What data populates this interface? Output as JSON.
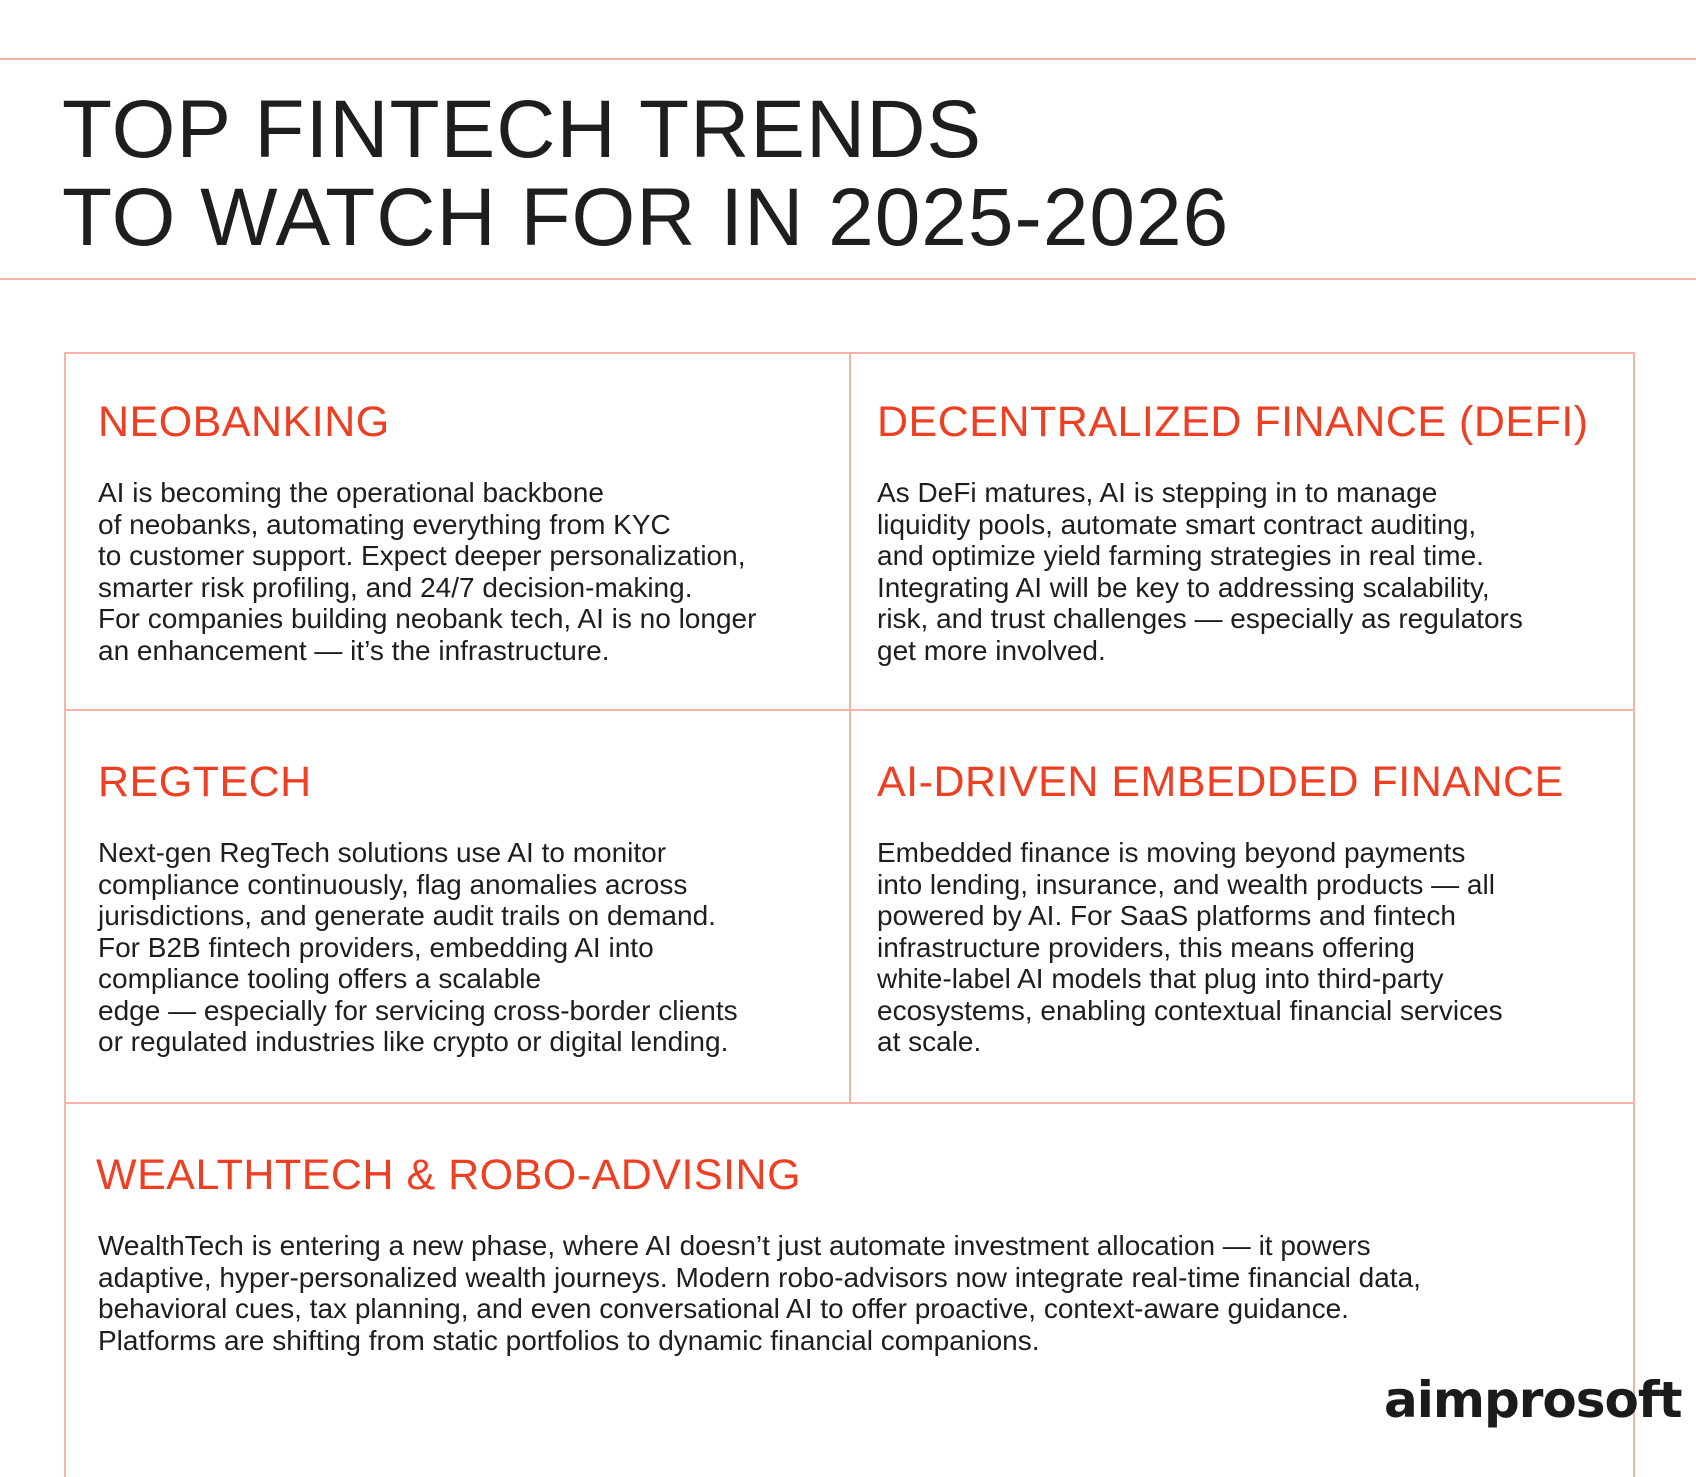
{
  "title": {
    "line1": "TOP FINTECH TRENDS",
    "line2": "TO WATCH FOR IN 2025-2026"
  },
  "cards": [
    {
      "heading": "NEOBANKING",
      "lines": [
        "AI is becoming the operational backbone",
        "of neobanks, automating everything from KYC",
        "to customer support. Expect deeper personalization,",
        "smarter risk profiling, and 24/7 decision-making.",
        "For companies building neobank tech, AI is no longer",
        "an enhancement — it’s the infrastructure."
      ]
    },
    {
      "heading": "DECENTRALIZED FINANCE (DEFI)",
      "lines": [
        "As DeFi matures, AI is stepping in to manage",
        "liquidity pools, automate smart contract auditing,",
        "and optimize yield farming strategies in real time.",
        "Integrating AI will be key to addressing scalability,",
        "risk, and trust challenges — especially as regulators",
        "get more involved."
      ]
    },
    {
      "heading": "REGTECH",
      "lines": [
        "Next-gen RegTech solutions use AI to monitor",
        "compliance continuously, flag anomalies across",
        "jurisdictions, and generate audit trails on demand.",
        "For B2B fintech providers, embedding AI into",
        "compliance tooling offers a scalable",
        "edge — especially for servicing cross-border clients",
        "or regulated industries like crypto or digital lending."
      ]
    },
    {
      "heading": "AI-DRIVEN EMBEDDED FINANCE",
      "lines": [
        "Embedded finance is moving beyond payments",
        "into lending, insurance, and wealth products — all",
        "powered by AI. For SaaS platforms and fintech",
        "infrastructure providers, this means offering",
        "white-label AI models that plug into third-party",
        "ecosystems, enabling contextual financial services",
        "at scale."
      ]
    },
    {
      "heading": "WEALTHTECH & ROBO-ADVISING",
      "lines": [
        "WealthTech is entering a new phase, where AI doesn’t just automate investment allocation — it powers",
        "adaptive, hyper-personalized wealth journeys. Modern robo-advisors now integrate real-time financial data,",
        "behavioral cues, tax planning, and even conversational AI to offer proactive, context-aware guidance.",
        "Platforms are shifting from static portfolios to dynamic financial companions."
      ]
    }
  ],
  "logo": {
    "text": "aimprosoft"
  },
  "colors": {
    "accent": "#ee3f22",
    "divider": "#f4b3a6",
    "text": "#1e1e1e"
  }
}
